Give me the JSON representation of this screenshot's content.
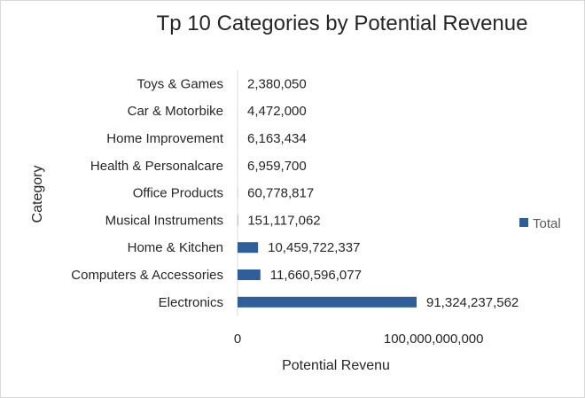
{
  "chart_data": {
    "type": "bar",
    "orientation": "horizontal",
    "title": "Tp 10 Categories by Potential Revenue",
    "xlabel": "Potential Revenu",
    "ylabel": "Category",
    "categories": [
      "Electronics",
      "Computers & Accessories",
      "Home & Kitchen",
      "Musical Instruments",
      "Office Products",
      "Health & Personalcare",
      "Home Improvement",
      "Car & Motorbike",
      "Toys & Games"
    ],
    "series": [
      {
        "name": "Total",
        "values": [
          91324237562,
          11660596077,
          10459722337,
          151117062,
          60778817,
          6959700,
          6163434,
          4472000,
          2380050
        ],
        "labels": [
          "91,324,237,562",
          "11,660,596,077",
          "10,459,722,337",
          "151,117,062",
          "60,778,817",
          "6,959,700",
          "6,163,434",
          "4,472,000",
          "2,380,050"
        ]
      }
    ],
    "xlim": [
      0,
      150000000000
    ],
    "xticks": [
      0,
      100000000000
    ],
    "xtick_labels": [
      "0",
      "100,000,000,000"
    ],
    "legend_position": "right",
    "grid": false,
    "colors": {
      "bar": "#2e5f9a",
      "axis": "#d9d9d9"
    }
  }
}
